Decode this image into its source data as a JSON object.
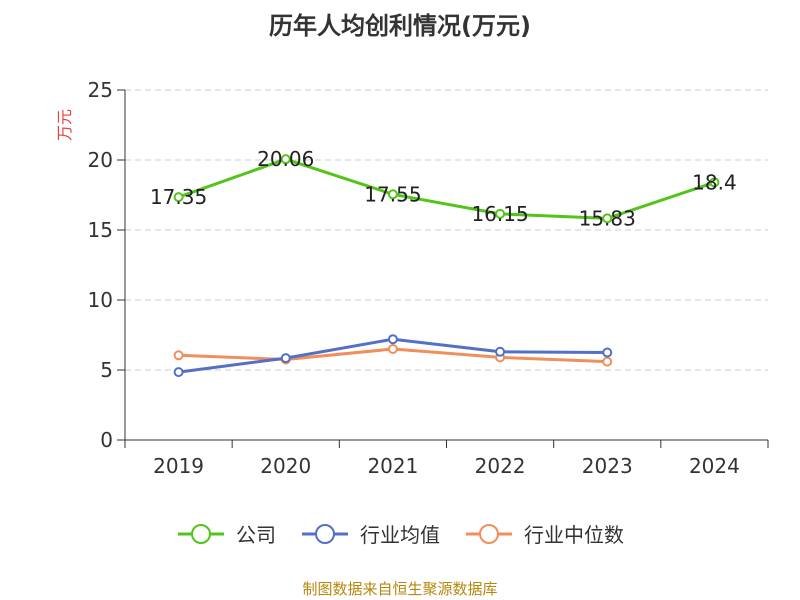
{
  "chart_data": {
    "type": "line",
    "title": "历年人均创利情况(万元)",
    "ylabel": "万元",
    "xlabel": "",
    "categories": [
      "2019",
      "2020",
      "2021",
      "2022",
      "2023",
      "2024"
    ],
    "ylim": [
      0,
      25
    ],
    "yticks": [
      0,
      5,
      10,
      15,
      20,
      25
    ],
    "grid": true,
    "legend_position": "bottom",
    "series": [
      {
        "name": "公司",
        "color": "#52c41a",
        "values": [
          17.35,
          20.06,
          17.55,
          16.15,
          15.83,
          18.4
        ],
        "labels": [
          "17.35",
          "20.06",
          "17.55",
          "16.15",
          "15.83",
          "18.4"
        ]
      },
      {
        "name": "行业均值",
        "color": "#5470c6",
        "values": [
          4.85,
          5.85,
          7.2,
          6.3,
          6.25,
          null
        ]
      },
      {
        "name": "行业中位数",
        "color": "#f28e5c",
        "values": [
          6.05,
          5.75,
          6.5,
          5.9,
          5.6,
          null
        ]
      }
    ]
  },
  "source_text": "制图数据来自恒生聚源数据库",
  "colors": {
    "source_text": "#b8860b",
    "ylabel": "#e8403c",
    "axis": "#333333",
    "grid": "#cccccc"
  }
}
